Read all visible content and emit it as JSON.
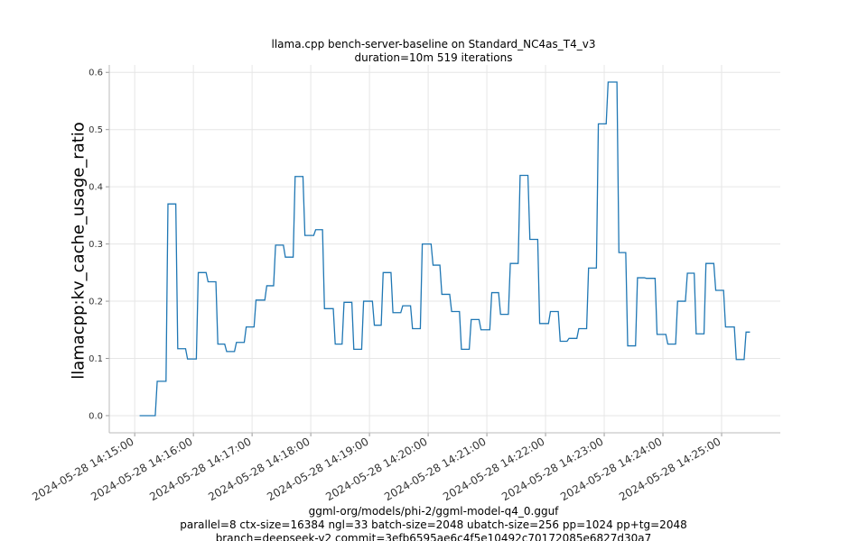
{
  "chart_data": {
    "type": "line",
    "title": "llama.cpp bench-server-baseline on Standard_NC4as_T4_v3",
    "subtitle": "duration=10m 519 iterations",
    "xlabel_lines": [
      "ggml-org/models/phi-2/ggml-model-q4_0.gguf",
      "parallel=8 ctx-size=16384 ngl=33 batch-size=2048 ubatch-size=256 pp=1024 pp+tg=2048",
      "branch=deepseek-v2 commit=3efb6595ae6c4f5e10492c70172085e6827d30a7"
    ],
    "ylabel": "llamacpp:kv_cache_usage_ratio",
    "date": "2024-05-28",
    "xlim": [
      "14:14:34",
      "14:26:00"
    ],
    "ylim": [
      -0.03,
      0.613
    ],
    "x_ticks": [
      "2024-05-28 14:15:00",
      "2024-05-28 14:16:00",
      "2024-05-28 14:17:00",
      "2024-05-28 14:18:00",
      "2024-05-28 14:19:00",
      "2024-05-28 14:20:00",
      "2024-05-28 14:21:00",
      "2024-05-28 14:22:00",
      "2024-05-28 14:23:00",
      "2024-05-28 14:24:00",
      "2024-05-28 14:25:00"
    ],
    "y_ticks": [
      "0.0",
      "0.1",
      "0.2",
      "0.3",
      "0.4",
      "0.5",
      "0.6"
    ],
    "grid": true,
    "line_color": "#1f77b4",
    "series": [
      {
        "x": [
          "14:15:05",
          "14:15:23",
          "14:15:34",
          "14:15:44",
          "14:15:54",
          "14:16:05",
          "14:16:15",
          "14:16:25",
          "14:16:34",
          "14:16:44",
          "14:16:54",
          "14:17:04",
          "14:17:15",
          "14:17:24",
          "14:17:34",
          "14:17:44",
          "14:17:54",
          "14:18:05",
          "14:18:14",
          "14:18:25",
          "14:18:34",
          "14:18:44",
          "14:18:54",
          "14:19:05",
          "14:19:14",
          "14:19:24",
          "14:19:34",
          "14:19:44",
          "14:19:54",
          "14:20:05",
          "14:20:14",
          "14:20:24",
          "14:20:34",
          "14:20:44",
          "14:20:54",
          "14:21:05",
          "14:21:14",
          "14:21:24",
          "14:21:34",
          "14:21:44",
          "14:21:54",
          "14:22:05",
          "14:22:15",
          "14:22:24",
          "14:22:34",
          "14:22:44",
          "14:22:54",
          "14:23:04",
          "14:23:15",
          "14:23:24",
          "14:23:34",
          "14:23:43",
          "14:23:54",
          "14:24:05",
          "14:24:15",
          "14:24:25",
          "14:24:34",
          "14:24:44",
          "14:24:54",
          "14:25:04",
          "14:25:15",
          "14:25:25",
          "14:25:29"
        ],
        "y": [
          0.0,
          0.06,
          0.37,
          0.117,
          0.099,
          0.25,
          0.234,
          0.125,
          0.112,
          0.128,
          0.155,
          0.202,
          0.227,
          0.298,
          0.277,
          0.418,
          0.315,
          0.325,
          0.187,
          0.125,
          0.198,
          0.116,
          0.2,
          0.158,
          0.25,
          0.18,
          0.192,
          0.152,
          0.3,
          0.263,
          0.212,
          0.182,
          0.116,
          0.168,
          0.15,
          0.215,
          0.177,
          0.266,
          0.42,
          0.308,
          0.161,
          0.182,
          0.13,
          0.135,
          0.152,
          0.258,
          0.51,
          0.583,
          0.285,
          0.122,
          0.241,
          0.24,
          0.142,
          0.125,
          0.2,
          0.249,
          0.143,
          0.266,
          0.219,
          0.155,
          0.098,
          0.146,
          0.146
        ]
      }
    ]
  }
}
